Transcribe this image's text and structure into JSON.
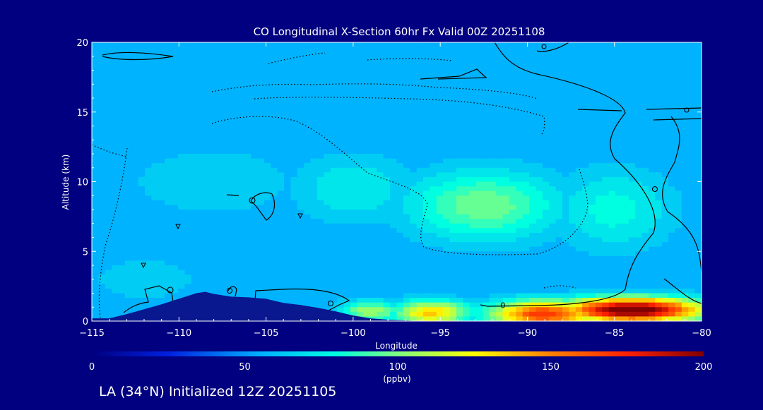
{
  "colors": {
    "background": "#000080",
    "text": "#ffffff",
    "contour": "#000000",
    "terrain": "#0a1890"
  },
  "footer": {
    "text": "LA (34°N) Initialized 12Z 20251105"
  },
  "chart_data": {
    "type": "heatmap",
    "title": "CO Longitudinal X-Section 60hr  Fx Valid 00Z 20251108",
    "xlabel": "Longitude",
    "ylabel": "Altitude (km)",
    "xlim": [
      -115,
      -80
    ],
    "ylim": [
      0,
      20
    ],
    "xticks": [
      -115,
      -110,
      -105,
      -100,
      -95,
      -90,
      -85,
      -80
    ],
    "xtick_labels": [
      "−115",
      "−110",
      "−105",
      "−100",
      "−95",
      "−90",
      "−85",
      "−80"
    ],
    "yticks": [
      0,
      5,
      10,
      15,
      20
    ],
    "ytick_labels": [
      "0",
      "5",
      "10",
      "15",
      "20"
    ],
    "grid": false,
    "colorbar": {
      "range": [
        0,
        200
      ],
      "ticks": [
        0,
        50,
        100,
        150,
        200
      ],
      "tick_labels": [
        "0",
        "50",
        "100",
        "150",
        "200"
      ],
      "unit": "(ppbv)",
      "stops": [
        {
          "v": 0,
          "c": "#000080"
        },
        {
          "v": 25,
          "c": "#0020e0"
        },
        {
          "v": 55,
          "c": "#00b0ff"
        },
        {
          "v": 80,
          "c": "#00ffe0"
        },
        {
          "v": 100,
          "c": "#80ff80"
        },
        {
          "v": 125,
          "c": "#ffff00"
        },
        {
          "v": 150,
          "c": "#ff8000"
        },
        {
          "v": 175,
          "c": "#ff2000"
        },
        {
          "v": 200,
          "c": "#800000"
        }
      ]
    },
    "contour_labels": [
      {
        "text": "0",
        "lon": -91.4,
        "alt": 1.15
      }
    ],
    "terrain_profile": {
      "lon": [
        -115,
        -114,
        -113,
        -112,
        -111,
        -110,
        -109,
        -108.5,
        -108,
        -107,
        -106,
        -105,
        -104,
        -103,
        -102,
        -101,
        -100,
        -99,
        -98,
        -97,
        -96,
        -95,
        -94,
        -93,
        -92,
        -91,
        -80
      ],
      "alt": [
        0.2,
        0.2,
        0.5,
        0.85,
        1.2,
        1.6,
        2.0,
        2.1,
        1.95,
        1.75,
        1.7,
        1.6,
        1.3,
        1.15,
        0.95,
        0.7,
        0.4,
        0.2,
        0.1,
        0.05,
        0.0,
        0.0,
        0.0,
        0.0,
        0.0,
        0.0,
        0.0
      ]
    },
    "field_sources": [
      {
        "lon": -84,
        "alt": 0.8,
        "dx": 4.2,
        "dy": 0.9,
        "v": 210
      },
      {
        "lon": -89,
        "alt": 0.5,
        "dx": 3.2,
        "dy": 1.0,
        "v": 170
      },
      {
        "lon": -95.5,
        "alt": 0.6,
        "dx": 2.2,
        "dy": 0.9,
        "v": 135
      },
      {
        "lon": -99,
        "alt": 0.7,
        "dx": 1.8,
        "dy": 0.8,
        "v": 108
      },
      {
        "lon": -92.5,
        "alt": 8.3,
        "dx": 4.5,
        "dy": 2.6,
        "v": 98
      },
      {
        "lon": -85,
        "alt": 8.0,
        "dx": 3.5,
        "dy": 3.0,
        "v": 80
      },
      {
        "lon": -100,
        "alt": 9.5,
        "dx": 3.5,
        "dy": 2.5,
        "v": 76
      },
      {
        "lon": -108,
        "alt": 10.0,
        "dx": 5.0,
        "dy": 2.5,
        "v": 68
      },
      {
        "lon": -112,
        "alt": 3.0,
        "dx": 4.0,
        "dy": 2.0,
        "v": 64
      }
    ],
    "field_background": {
      "base": 52,
      "alt_peak": 8.0,
      "alt_width": 7.0,
      "top_value": 14
    }
  }
}
